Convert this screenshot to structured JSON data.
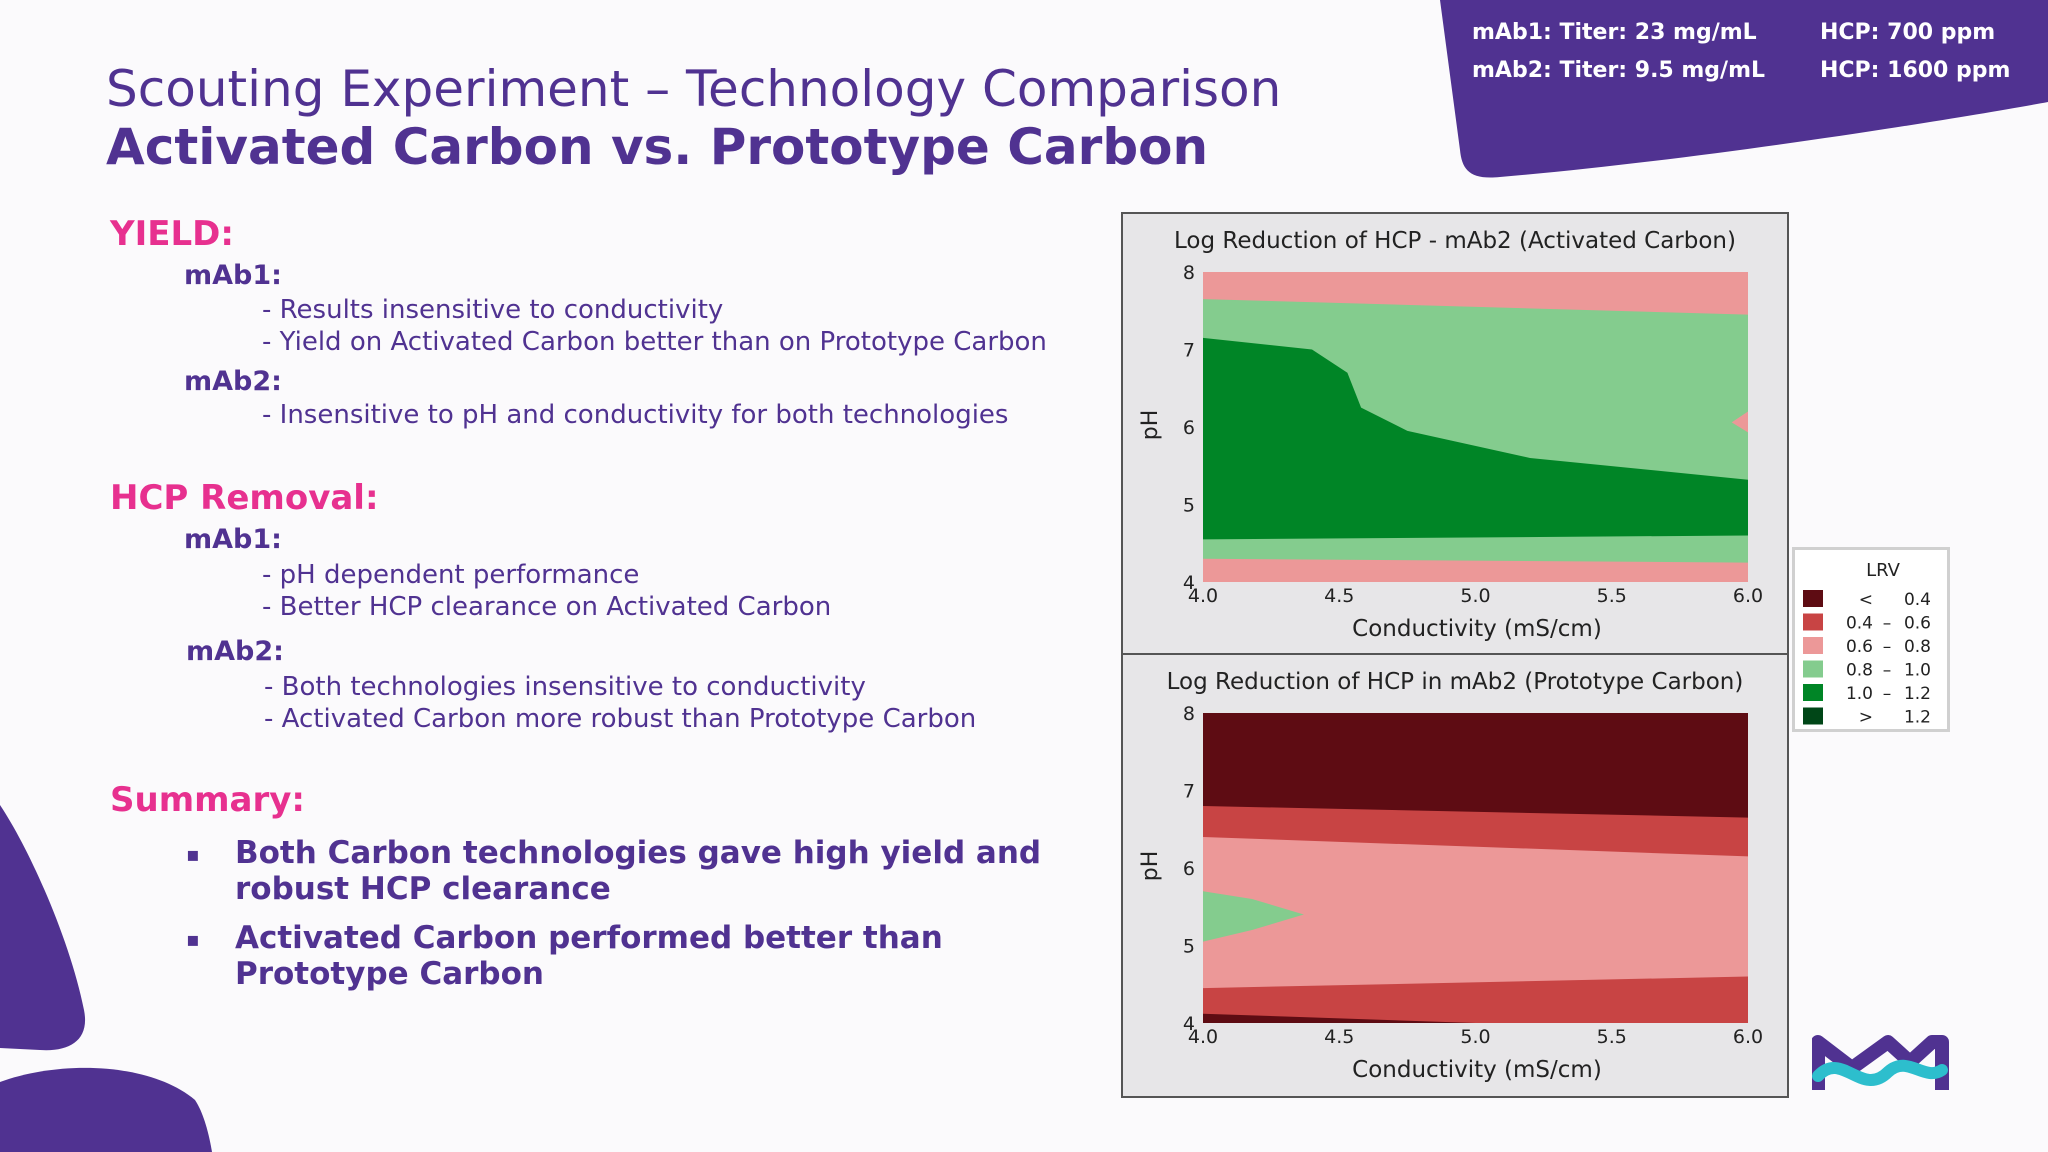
{
  "header": {
    "title_line1": "Scouting Experiment – Technology Comparison",
    "title_line2": "Activated Carbon vs. Prototype Carbon"
  },
  "info_badge": {
    "row1_left": "mAb1: Titer: 23 mg/mL",
    "row1_right": "HCP: 700 ppm",
    "row2_left": "mAb2: Titer: 9.5 mg/mL",
    "row2_right": "HCP: 1600 ppm"
  },
  "yield": {
    "heading": "YIELD:",
    "mab1_label": "mAb1:",
    "mab1_points": [
      "- Results insensitive to conductivity",
      "- Yield on Activated Carbon better than on Prototype Carbon"
    ],
    "mab2_label": "mAb2:",
    "mab2_points": [
      "- Insensitive to pH and conductivity for both technologies"
    ]
  },
  "hcp": {
    "heading": "HCP Removal:",
    "mab1_label": "mAb1:",
    "mab1_points": [
      "- pH dependent performance",
      "- Better HCP clearance on Activated Carbon"
    ],
    "mab2_label": "mAb2:",
    "mab2_points": [
      "- Both technologies insensitive to conductivity",
      "- Activated Carbon more robust than Prototype Carbon"
    ]
  },
  "summary": {
    "heading": "Summary:",
    "bullet_glyph": "▪",
    "points": [
      "Both Carbon technologies gave high yield and robust HCP clearance",
      "Activated Carbon performed better than Prototype Carbon"
    ]
  },
  "colors": {
    "accent_purple": "#503291",
    "accent_pink": "#e7308f",
    "lrv_lt_0_4": "#5e0c13",
    "lrv_0_4_0_6": "#c84444",
    "lrv_0_6_0_8": "#ec9898",
    "lrv_0_8_1_0": "#84cc8e",
    "lrv_1_0_1_2": "#008526",
    "lrv_gt_1_2": "#004617"
  },
  "chart_data": [
    {
      "type": "contour",
      "title": "Log Reduction of HCP - mAb2 (Activated Carbon)",
      "xlabel": "Conductivity (mS/cm)",
      "ylabel": "pH",
      "xlim": [
        4.0,
        6.0
      ],
      "ylim": [
        4,
        8
      ],
      "x_ticks": [
        "4.0",
        "4.5",
        "5.0",
        "5.5",
        "6.0"
      ],
      "y_ticks": [
        "4",
        "5",
        "6",
        "7",
        "8"
      ],
      "regions": [
        {
          "range": "0.6 – 0.8",
          "color": "#ec9898",
          "boundary": [
            [
              4.0,
              8.0
            ],
            [
              6.0,
              8.0
            ],
            [
              6.0,
              4.0
            ],
            [
              4.0,
              4.0
            ]
          ]
        },
        {
          "range": "0.8 – 1.0",
          "color": "#84cc8e",
          "boundary": [
            [
              4.0,
              7.65
            ],
            [
              6.0,
              7.45
            ],
            [
              6.0,
              4.25
            ],
            [
              4.0,
              4.3
            ]
          ]
        },
        {
          "range": "1.0 – 1.2",
          "color": "#008526",
          "boundary": [
            [
              4.0,
              7.15
            ],
            [
              4.4,
              7.0
            ],
            [
              4.53,
              6.7
            ],
            [
              4.58,
              6.25
            ],
            [
              4.75,
              5.95
            ],
            [
              5.2,
              5.6
            ],
            [
              6.0,
              5.32
            ],
            [
              6.0,
              4.6
            ],
            [
              4.0,
              4.55
            ]
          ]
        },
        {
          "range": "0.6 – 0.8",
          "color": "#ec9898",
          "boundary": [
            [
              6.0,
              6.2
            ],
            [
              5.94,
              6.06
            ],
            [
              6.0,
              5.93
            ]
          ]
        }
      ]
    },
    {
      "type": "contour",
      "title": "Log Reduction of HCP in mAb2 (Prototype Carbon)",
      "xlabel": "Conductivity (mS/cm)",
      "ylabel": "pH",
      "xlim": [
        4.0,
        6.0
      ],
      "ylim": [
        4,
        8
      ],
      "x_ticks": [
        "4.0",
        "4.5",
        "5.0",
        "5.5",
        "6.0"
      ],
      "y_ticks": [
        "4",
        "5",
        "6",
        "7",
        "8"
      ],
      "regions": [
        {
          "range": "< 0.4",
          "color": "#5e0c13",
          "boundary": [
            [
              4.0,
              8.0
            ],
            [
              6.0,
              8.0
            ],
            [
              6.0,
              4.0
            ],
            [
              4.0,
              4.0
            ]
          ]
        },
        {
          "range": "0.4 – 0.6",
          "color": "#c84444",
          "boundary": [
            [
              4.0,
              6.8
            ],
            [
              6.0,
              6.65
            ],
            [
              6.0,
              4.0
            ],
            [
              5.0,
              4.0
            ],
            [
              4.0,
              4.12
            ]
          ]
        },
        {
          "range": "0.6 – 0.8",
          "color": "#ec9898",
          "boundary": [
            [
              4.0,
              6.4
            ],
            [
              6.0,
              6.15
            ],
            [
              6.0,
              4.6
            ],
            [
              4.0,
              4.45
            ]
          ]
        },
        {
          "range": "0.8 – 1.0",
          "color": "#84cc8e",
          "boundary": [
            [
              4.0,
              5.7
            ],
            [
              4.18,
              5.6
            ],
            [
              4.37,
              5.4
            ],
            [
              4.18,
              5.2
            ],
            [
              4.0,
              5.05
            ]
          ]
        }
      ]
    }
  ],
  "legend": {
    "title": "LRV",
    "items": [
      {
        "a": "<",
        "b": "",
        "c": "0.4",
        "color": "#5e0c13"
      },
      {
        "a": "0.4",
        "b": "–",
        "c": "0.6",
        "color": "#c84444"
      },
      {
        "a": "0.6",
        "b": "–",
        "c": "0.8",
        "color": "#ec9898"
      },
      {
        "a": "0.8",
        "b": "–",
        "c": "1.0",
        "color": "#84cc8e"
      },
      {
        "a": "1.0",
        "b": "–",
        "c": "1.2",
        "color": "#008526"
      },
      {
        "a": ">",
        "b": "",
        "c": "1.2",
        "color": "#004617"
      }
    ]
  }
}
